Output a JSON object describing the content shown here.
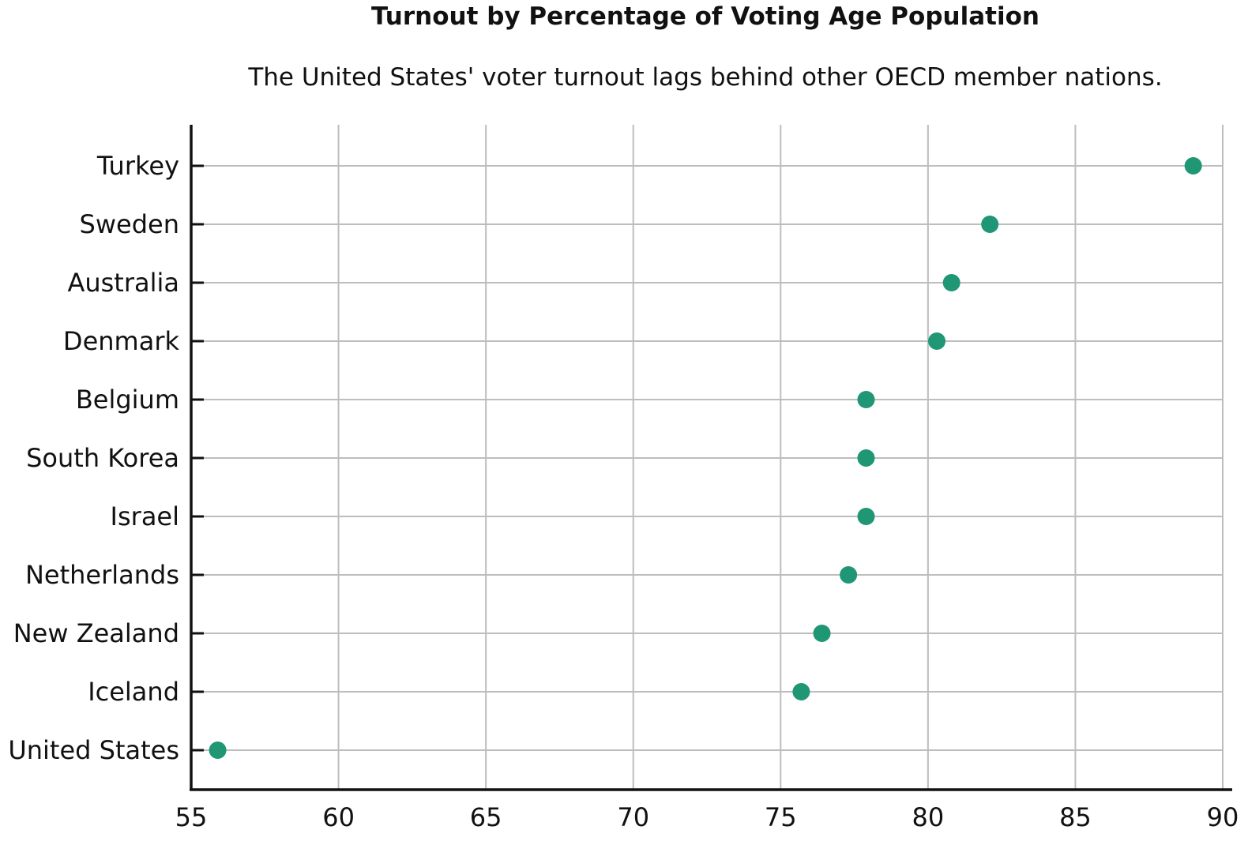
{
  "chart_data": {
    "type": "scatter",
    "title": "Turnout by Percentage of Voting Age Population",
    "subtitle": "The United States' voter turnout lags behind other OECD member nations.",
    "xlabel": "",
    "ylabel": "",
    "xlim": [
      55,
      90
    ],
    "xticks": [
      "55",
      "60",
      "65",
      "70",
      "75",
      "80",
      "85",
      "90"
    ],
    "grid": true,
    "marker_color": "#1f9674",
    "categories": [
      "Turkey",
      "Sweden",
      "Australia",
      "Denmark",
      "Belgium",
      "South Korea",
      "Israel",
      "Netherlands",
      "New Zealand",
      "Iceland",
      "United States"
    ],
    "values": [
      89.0,
      82.1,
      80.8,
      80.3,
      77.9,
      77.9,
      77.9,
      77.3,
      76.4,
      75.7,
      55.9
    ]
  }
}
